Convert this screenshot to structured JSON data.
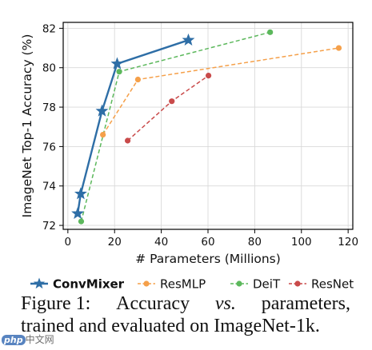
{
  "chart_data": {
    "type": "line",
    "xlabel": "# Parameters (Millions)",
    "ylabel": "ImageNet Top-1 Accuracy (%)",
    "xlim": [
      -2,
      122
    ],
    "ylim": [
      71.8,
      82.3
    ],
    "xticks": [
      0,
      20,
      40,
      60,
      80,
      100,
      120
    ],
    "yticks": [
      72,
      74,
      76,
      78,
      80,
      82
    ],
    "grid": true,
    "legend_position": "bottom",
    "series": [
      {
        "name": "ConvMixer",
        "color": "#2e6ea6",
        "marker": "star",
        "line_style": "solid",
        "x": [
          4.2,
          5.5,
          14.6,
          21.1,
          51.6
        ],
        "y": [
          72.6,
          73.6,
          77.8,
          80.2,
          81.4
        ]
      },
      {
        "name": "ResMLP",
        "color": "#f5a04a",
        "marker": "circle",
        "line_style": "dashed",
        "x": [
          15,
          30,
          116
        ],
        "y": [
          76.6,
          79.4,
          81.0
        ]
      },
      {
        "name": "DeiT",
        "color": "#5cb85c",
        "marker": "circle",
        "line_style": "dashed",
        "x": [
          5.7,
          22,
          86.6
        ],
        "y": [
          72.2,
          79.8,
          81.8
        ]
      },
      {
        "name": "ResNet",
        "color": "#c94a4a",
        "marker": "circle",
        "line_style": "dashed",
        "x": [
          25.6,
          44.5,
          60.2
        ],
        "y": [
          76.3,
          78.3,
          79.6
        ]
      }
    ]
  },
  "caption": {
    "line1_words": [
      "Figure 1:",
      "Accuracy",
      "vs.",
      "parameters,"
    ],
    "line2": "trained and evaluated on ImageNet-1k."
  },
  "watermark": {
    "badge": "php",
    "text": "中文网"
  }
}
